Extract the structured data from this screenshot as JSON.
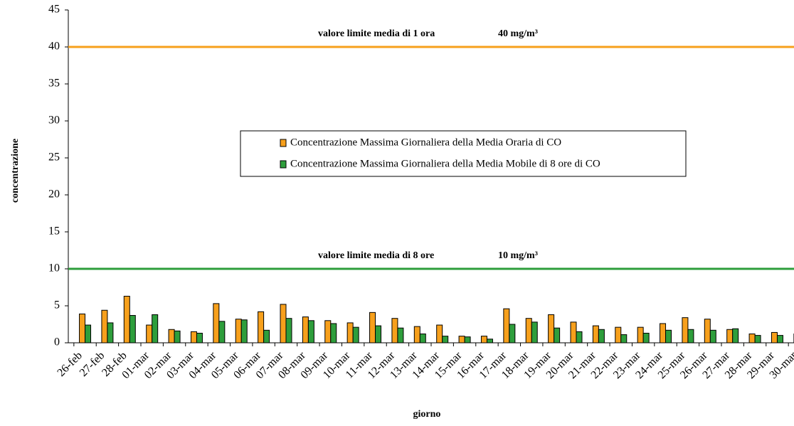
{
  "chart_data": {
    "type": "bar",
    "x_label": "giorno",
    "y_label": "concentrazione",
    "categories": [
      "26-feb",
      "27-feb",
      "28-feb",
      "01-mar",
      "02-mar",
      "03-mar",
      "04-mar",
      "05-mar",
      "06-mar",
      "07-mar",
      "08-mar",
      "09-mar",
      "10-mar",
      "11-mar",
      "12-mar",
      "13-mar",
      "14-mar",
      "15-mar",
      "16-mar",
      "17-mar",
      "18-mar",
      "19-mar",
      "20-mar",
      "21-mar",
      "22-mar",
      "23-mar",
      "24-mar",
      "25-mar",
      "26-mar",
      "27-mar",
      "28-mar",
      "29-mar",
      "30-mar"
    ],
    "series": [
      {
        "name": "Concentrazione Massima Giornaliera della Media Oraria di CO",
        "color": "#f7a01c",
        "values": [
          3.9,
          4.4,
          6.3,
          2.4,
          1.8,
          1.5,
          5.3,
          3.2,
          4.2,
          5.2,
          3.5,
          3.0,
          2.7,
          4.1,
          3.3,
          2.2,
          2.4,
          0.9,
          0.9,
          4.6,
          3.3,
          3.8,
          2.8,
          2.3,
          2.1,
          2.1,
          2.6,
          3.4,
          3.2,
          1.8,
          1.2,
          1.4,
          1.2
        ]
      },
      {
        "name": "Concentrazione Massima Giornaliera della Media Mobile di 8 ore di CO",
        "color": "#2e9e3c",
        "values": [
          2.4,
          2.7,
          3.7,
          3.8,
          1.6,
          1.3,
          2.9,
          3.1,
          1.7,
          3.3,
          3.0,
          2.6,
          2.1,
          2.3,
          2.0,
          1.2,
          0.9,
          0.8,
          0.5,
          2.5,
          2.8,
          2.0,
          1.5,
          1.8,
          1.1,
          1.3,
          1.7,
          1.8,
          1.7,
          1.9,
          1.0,
          1.0,
          null
        ]
      }
    ],
    "reference_lines": [
      {
        "value": 40,
        "color": "#f7a01c",
        "label": "valore limite media di 1 ora",
        "unit_label": "40 mg/m³"
      },
      {
        "value": 10,
        "color": "#2e9e3c",
        "label": "valore limite media di 8 ore",
        "unit_label": "10 mg/m³"
      }
    ],
    "ylim": [
      0,
      45
    ],
    "yticks": [
      0,
      5,
      10,
      15,
      20,
      25,
      30,
      35,
      40,
      45
    ]
  }
}
